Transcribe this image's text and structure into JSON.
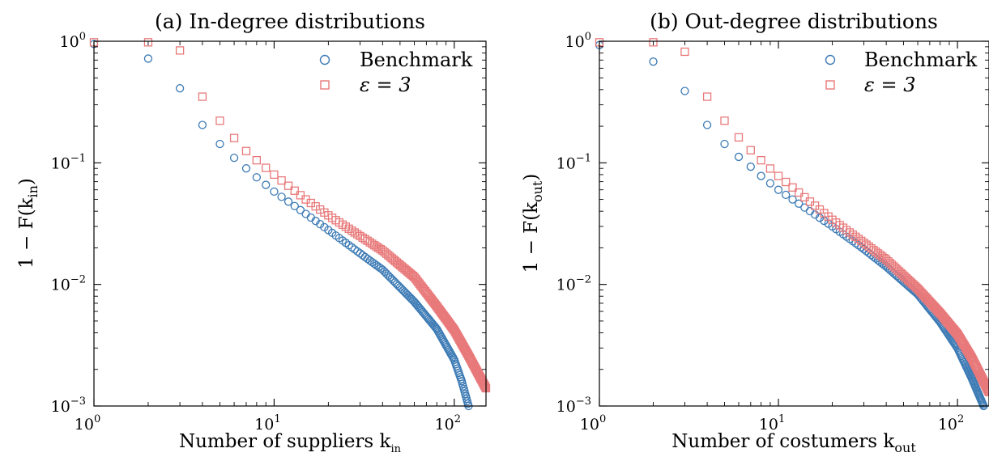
{
  "chart_data": [
    {
      "type": "scatter",
      "title": "(a) In-degree distributions",
      "xlabel": "Number of suppliers k_in",
      "xlabel_parts": {
        "main": "Number of suppliers k",
        "sub": "in"
      },
      "ylabel": "1 − F(k_in)",
      "ylabel_parts": {
        "main": "1 − F(k",
        "sub": "in",
        "end": ")"
      },
      "xscale": "log",
      "yscale": "log",
      "xlim": [
        1,
        150
      ],
      "ylim": [
        0.001,
        1
      ],
      "xticks": [
        {
          "base": "10",
          "exp": "0",
          "value": 1
        },
        {
          "base": "10",
          "exp": "1",
          "value": 10
        },
        {
          "base": "10",
          "exp": "2",
          "value": 100
        }
      ],
      "yticks": [
        {
          "base": "10",
          "exp": "−3",
          "value": 0.001
        },
        {
          "base": "10",
          "exp": "−2",
          "value": 0.01
        },
        {
          "base": "10",
          "exp": "−1",
          "value": 0.1
        },
        {
          "base": "10",
          "exp": "0",
          "value": 1
        }
      ],
      "grid": false,
      "legend_position": "top-right",
      "series": [
        {
          "name": "Benchmark",
          "marker": "circle",
          "color": "#3d7bb5",
          "x": [
            1,
            2,
            3,
            4,
            5,
            6,
            7,
            8,
            10,
            15,
            20,
            30,
            40,
            60,
            80,
            100,
            110,
            120
          ],
          "y": [
            0.95,
            0.72,
            0.41,
            0.205,
            0.143,
            0.11,
            0.09,
            0.076,
            0.058,
            0.038,
            0.028,
            0.018,
            0.0132,
            0.0072,
            0.0043,
            0.0024,
            0.0016,
            0.001
          ]
        },
        {
          "name": "ε = 3",
          "marker": "square",
          "color": "#e8797a",
          "x": [
            1,
            2,
            3,
            4,
            5,
            6,
            7,
            8,
            10,
            15,
            20,
            30,
            40,
            60,
            80,
            100,
            120,
            150
          ],
          "y": [
            0.98,
            0.98,
            0.84,
            0.35,
            0.222,
            0.16,
            0.125,
            0.105,
            0.08,
            0.05,
            0.037,
            0.025,
            0.019,
            0.0115,
            0.0066,
            0.0042,
            0.0026,
            0.0014
          ]
        }
      ]
    },
    {
      "type": "scatter",
      "title": "(b) Out-degree distributions",
      "xlabel": "Number of costumers k_out",
      "xlabel_parts": {
        "main": "Number of costumers k",
        "sub": "out"
      },
      "ylabel": "1 − F(k_out)",
      "ylabel_parts": {
        "main": "1 − F(k",
        "sub": "out",
        "end": ")"
      },
      "xscale": "log",
      "yscale": "log",
      "xlim": [
        1,
        150
      ],
      "ylim": [
        0.001,
        1
      ],
      "xticks": [
        {
          "base": "10",
          "exp": "0",
          "value": 1
        },
        {
          "base": "10",
          "exp": "1",
          "value": 10
        },
        {
          "base": "10",
          "exp": "2",
          "value": 100
        }
      ],
      "yticks": [
        {
          "base": "10",
          "exp": "−3",
          "value": 0.001
        },
        {
          "base": "10",
          "exp": "−2",
          "value": 0.01
        },
        {
          "base": "10",
          "exp": "−1",
          "value": 0.1
        },
        {
          "base": "10",
          "exp": "0",
          "value": 1
        }
      ],
      "grid": false,
      "legend_position": "top-right",
      "series": [
        {
          "name": "Benchmark",
          "marker": "circle",
          "color": "#3d7bb5",
          "x": [
            1,
            2,
            3,
            4,
            5,
            6,
            7,
            8,
            10,
            15,
            20,
            30,
            40,
            60,
            80,
            100,
            120,
            140
          ],
          "y": [
            0.93,
            0.68,
            0.39,
            0.205,
            0.143,
            0.112,
            0.093,
            0.078,
            0.06,
            0.04,
            0.03,
            0.0195,
            0.014,
            0.0083,
            0.0049,
            0.003,
            0.0017,
            0.001
          ]
        },
        {
          "name": "ε = 3",
          "marker": "square",
          "color": "#e8797a",
          "x": [
            1,
            2,
            3,
            4,
            5,
            6,
            7,
            8,
            10,
            15,
            20,
            30,
            40,
            60,
            80,
            100,
            120,
            150
          ],
          "y": [
            0.98,
            0.98,
            0.82,
            0.35,
            0.222,
            0.162,
            0.127,
            0.105,
            0.078,
            0.048,
            0.034,
            0.022,
            0.016,
            0.0092,
            0.0058,
            0.0039,
            0.0025,
            0.0013
          ]
        }
      ]
    }
  ]
}
